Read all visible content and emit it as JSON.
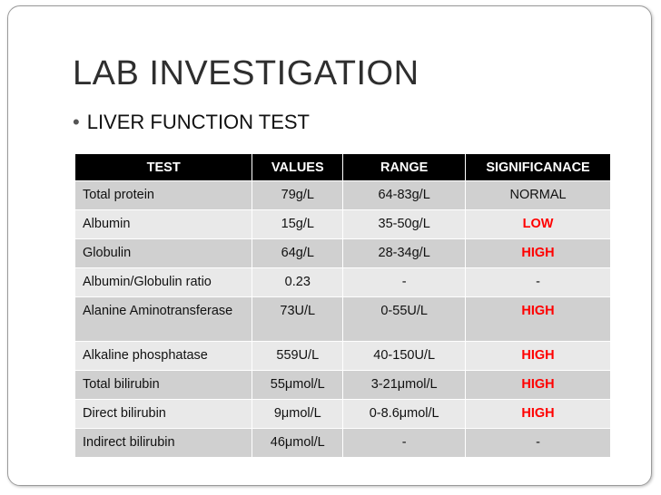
{
  "title": "LAB INVESTIGATION",
  "bullet": "LIVER FUNCTION TEST",
  "table": {
    "header": [
      "TEST",
      "VALUES",
      "RANGE",
      "SIGNIFICANACE"
    ],
    "rows": [
      [
        "Total protein",
        "79g/L",
        "64-83g/L",
        "NORMAL"
      ],
      [
        "Albumin",
        "15g/L",
        "35-50g/L",
        "LOW"
      ],
      [
        "Globulin",
        "64g/L",
        "28-34g/L",
        "HIGH"
      ],
      [
        "Albumin/Globulin ratio",
        "0.23",
        "-",
        "-"
      ],
      [
        "Alanine Aminotransferase",
        "73U/L",
        "0-55U/L",
        "HIGH"
      ],
      [
        "Alkaline phosphatase",
        "559U/L",
        "40-150U/L",
        "HIGH"
      ],
      [
        "Total bilirubin",
        "55μmol/L",
        "3-21μmol/L",
        "HIGH"
      ],
      [
        "Direct bilirubin",
        "9μmol/L",
        "0-8.6μmol/L",
        "HIGH"
      ],
      [
        "Indirect bilirubin",
        "46μmol/L",
        "-",
        "-"
      ]
    ]
  }
}
